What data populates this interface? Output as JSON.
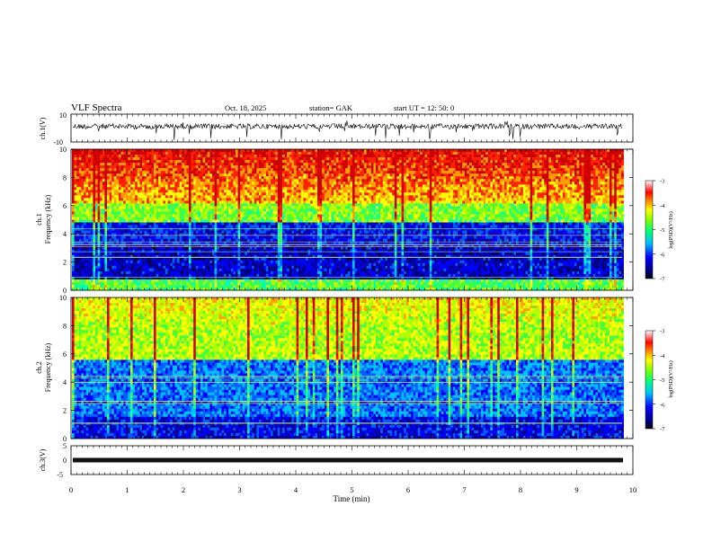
{
  "header": {
    "title": "VLF  Spectra",
    "date": "Oct. 18, 2025",
    "station": "station= GAK",
    "start_ut": "start  UT  =    12: 50: 0"
  },
  "chart_data": [
    {
      "type": "line",
      "ylabel": "ch.1(V)",
      "ylim": [
        -10,
        10
      ],
      "yticks": [
        10,
        -10
      ]
    },
    {
      "type": "heatmap",
      "ylabel_top": "ch.1",
      "ylabel": "Frequency  (kHz)",
      "ylim": [
        0,
        10
      ],
      "yticks": [
        0,
        2,
        4,
        6,
        8,
        10
      ],
      "colorbar": {
        "label": "log(PSD)(V²/Hz)",
        "range": [
          -7,
          -3
        ],
        "ticks": [
          -3,
          -4,
          -5,
          -6,
          -7
        ]
      }
    },
    {
      "type": "heatmap",
      "ylabel_top": "ch.2",
      "ylabel": "Frequency  (kHz)",
      "ylim": [
        0,
        10
      ],
      "yticks": [
        0,
        2,
        4,
        6,
        8,
        10
      ],
      "colorbar": {
        "label": "log(PSD)(V²/Hz)",
        "range": [
          -7,
          -3
        ],
        "ticks": [
          -3,
          -4,
          -5,
          -6,
          -7
        ]
      }
    },
    {
      "type": "line",
      "ylabel": "ch.3(V)",
      "ylim": [
        -5,
        5
      ],
      "yticks": [
        5,
        0,
        -5
      ]
    }
  ],
  "xaxis": {
    "label": "Time  (min)",
    "range": [
      0,
      10
    ],
    "ticks": [
      0,
      1,
      2,
      3,
      4,
      5,
      6,
      7,
      8,
      9,
      10
    ]
  }
}
